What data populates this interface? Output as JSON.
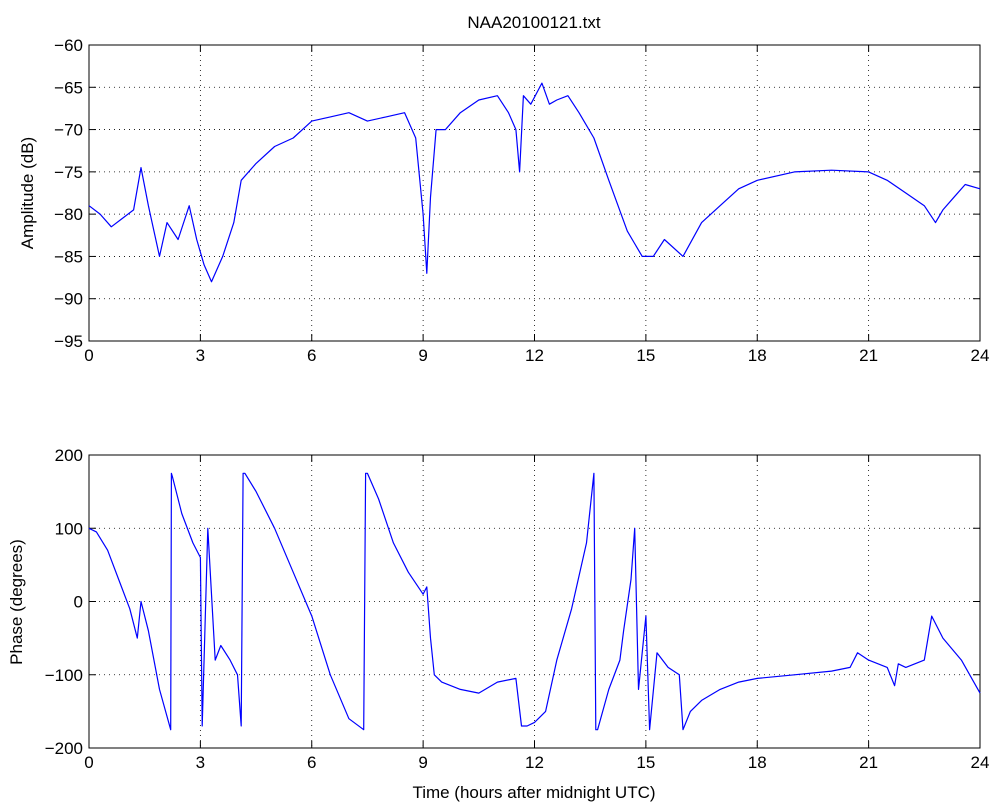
{
  "figure": {
    "title": "NAA20100121.txt",
    "xlabel": "Time (hours after midnight UTC)"
  },
  "chart_data": [
    {
      "type": "line",
      "title": "NAA20100121.txt",
      "xlabel": "",
      "ylabel": "Amplitude (dB)",
      "xlim": [
        0,
        24
      ],
      "ylim": [
        -95,
        -60
      ],
      "xticks": [
        0,
        3,
        6,
        9,
        12,
        15,
        18,
        21,
        24
      ],
      "yticks": [
        -95,
        -90,
        -85,
        -80,
        -75,
        -70,
        -65,
        -60
      ],
      "grid": true,
      "line_color": "#0000ff",
      "series": [
        {
          "x": [
            0,
            0.3,
            0.6,
            0.9,
            1.2,
            1.4,
            1.6,
            1.9,
            2.1,
            2.4,
            2.7,
            2.9,
            3.1,
            3.3,
            3.6,
            3.9,
            4.1,
            4.5,
            5.0,
            5.5,
            6.0,
            6.5,
            7.0,
            7.5,
            8.0,
            8.5,
            8.8,
            9.0,
            9.1,
            9.2,
            9.35,
            9.6,
            10.0,
            10.5,
            11.0,
            11.3,
            11.5,
            11.6,
            11.7,
            11.9,
            12.2,
            12.4,
            12.6,
            12.9,
            13.2,
            13.6,
            14.0,
            14.5,
            14.9,
            15.2,
            15.5,
            16.0,
            16.5,
            17.0,
            17.5,
            18.0,
            19.0,
            20.0,
            21.0,
            21.5,
            22.0,
            22.5,
            22.8,
            23.0,
            23.3,
            23.6,
            24.0
          ],
          "y": [
            -79,
            -80,
            -81.5,
            -80.5,
            -79.5,
            -74.5,
            -79,
            -85,
            -81,
            -83,
            -79,
            -83,
            -86,
            -88,
            -85,
            -81,
            -76,
            -74,
            -72,
            -71,
            -69,
            -68.5,
            -68,
            -69,
            -68.5,
            -68,
            -71,
            -80,
            -87,
            -78,
            -70,
            -70,
            -68,
            -66.5,
            -66,
            -68,
            -70,
            -75,
            -66,
            -67,
            -64.5,
            -67,
            -66.5,
            -66,
            -68,
            -71,
            -76,
            -82,
            -85,
            -85,
            -83,
            -85,
            -81,
            -79,
            -77,
            -76,
            -75,
            -74.8,
            -75,
            -76,
            -77.5,
            -79,
            -81,
            -79.5,
            -78,
            -76.5,
            -77
          ]
        }
      ]
    },
    {
      "type": "line",
      "title": "",
      "xlabel": "Time (hours after midnight UTC)",
      "ylabel": "Phase (degrees)",
      "xlim": [
        0,
        24
      ],
      "ylim": [
        -200,
        200
      ],
      "xticks": [
        0,
        3,
        6,
        9,
        12,
        15,
        18,
        21,
        24
      ],
      "yticks": [
        -200,
        -100,
        0,
        100,
        200
      ],
      "grid": true,
      "line_color": "#0000ff",
      "series": [
        {
          "x": [
            0,
            0.2,
            0.5,
            0.8,
            1.1,
            1.3,
            1.4,
            1.6,
            1.9,
            2.2,
            2.22,
            2.25,
            2.5,
            2.8,
            3.0,
            3.05,
            3.2,
            3.4,
            3.55,
            3.8,
            4.0,
            4.1,
            4.15,
            4.2,
            4.5,
            5.0,
            5.5,
            6.0,
            6.5,
            7.0,
            7.4,
            7.45,
            7.5,
            7.8,
            8.2,
            8.6,
            9.0,
            9.1,
            9.2,
            9.3,
            9.5,
            10.0,
            10.5,
            11.0,
            11.5,
            11.65,
            11.8,
            12.0,
            12.3,
            12.6,
            13.0,
            13.4,
            13.6,
            13.65,
            13.7,
            14.0,
            14.3,
            14.4,
            14.6,
            14.7,
            14.8,
            15.0,
            15.1,
            15.3,
            15.6,
            15.9,
            16.0,
            16.2,
            16.5,
            17.0,
            17.5,
            18.0,
            19.0,
            20.0,
            20.5,
            20.7,
            21.0,
            21.5,
            21.7,
            21.8,
            22.0,
            22.5,
            22.7,
            23.0,
            23.5,
            24.0
          ],
          "y": [
            100,
            95,
            70,
            30,
            -10,
            -50,
            0,
            -40,
            -120,
            -175,
            175,
            170,
            120,
            80,
            60,
            -170,
            100,
            -80,
            -60,
            -80,
            -100,
            -170,
            175,
            175,
            150,
            100,
            40,
            -20,
            -100,
            -160,
            -175,
            175,
            175,
            140,
            80,
            40,
            10,
            20,
            -50,
            -100,
            -110,
            -120,
            -125,
            -110,
            -105,
            -170,
            -170,
            -165,
            -150,
            -80,
            -10,
            80,
            175,
            -175,
            -175,
            -120,
            -80,
            -40,
            30,
            100,
            -120,
            -20,
            -175,
            -70,
            -90,
            -100,
            -175,
            -150,
            -135,
            -120,
            -110,
            -105,
            -100,
            -95,
            -90,
            -70,
            -80,
            -90,
            -115,
            -85,
            -90,
            -80,
            -20,
            -50,
            -80,
            -125
          ]
        }
      ]
    }
  ]
}
